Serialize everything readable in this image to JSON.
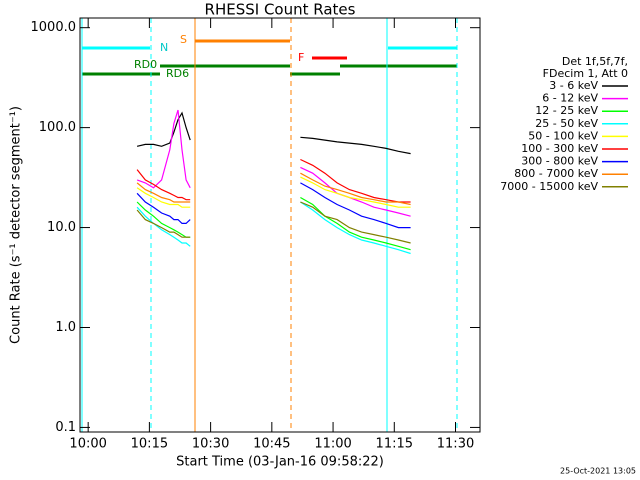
{
  "chart_data": {
    "type": "line",
    "title": "RHESSI Count Rates",
    "x_label": "Start Time (03-Jan-16 09:58:22)",
    "y_label": "Count Rate (s⁻¹ detector segment⁻¹)",
    "footer": "25-Oct-2021 13:05",
    "legend_header": [
      "Det 1f,5f,7f,",
      "FDecim 1, Att 0"
    ],
    "annotations": [
      "N",
      "S",
      "F",
      "RD0",
      "RD6"
    ],
    "log_y": true,
    "x": [
      "10:12",
      "10:14",
      "10:16",
      "10:18",
      "10:20",
      "10:21",
      "10:22",
      "10:23",
      "10:24",
      "10:25",
      "10:40",
      "10:52",
      "10:55",
      "10:58",
      "11:01",
      "11:04",
      "11:07",
      "11:10",
      "11:13",
      "11:16",
      "11:19"
    ],
    "xlim": [
      "09:58",
      "11:36"
    ],
    "xticks": [
      "10:00",
      "10:15",
      "10:30",
      "10:45",
      "11:00",
      "11:15",
      "11:30"
    ],
    "ylim": [
      0.09,
      1250
    ],
    "yticks": [
      {
        "value": 1000,
        "label": "1000.0"
      },
      {
        "value": 100,
        "label": "100.0"
      },
      {
        "value": 10,
        "label": "10.0"
      },
      {
        "value": 1,
        "label": "1.0"
      },
      0.1
    ],
    "series": [
      {
        "name": "3 - 6 keV",
        "color": "#000000",
        "values": [
          65,
          68,
          68,
          65,
          70,
          90,
          120,
          140,
          100,
          75,
          null,
          80,
          78,
          75,
          72,
          70,
          68,
          65,
          62,
          58,
          55
        ]
      },
      {
        "name": "6 - 12 keV",
        "color": "#ff00ff",
        "values": [
          30,
          28,
          25,
          30,
          60,
          110,
          150,
          60,
          30,
          25,
          null,
          40,
          35,
          28,
          22,
          20,
          18,
          16,
          15,
          14,
          13
        ]
      },
      {
        "name": "12 - 25 keV",
        "color": "#00ff00",
        "values": [
          18,
          15,
          13,
          11,
          10,
          9.5,
          9,
          8.5,
          8,
          8,
          null,
          20,
          17,
          13,
          11,
          9,
          8,
          7.5,
          7,
          6.5,
          6
        ]
      },
      {
        "name": "25 - 50 keV",
        "color": "#00ffff",
        "values": [
          16,
          13,
          11,
          9.5,
          8.5,
          8,
          7.5,
          7,
          7,
          6.5,
          null,
          18,
          15,
          12,
          10,
          8.5,
          7.5,
          7,
          6.5,
          6,
          5.5
        ]
      },
      {
        "name": "50 - 100 keV",
        "color": "#ffff00",
        "values": [
          25,
          22,
          20,
          18,
          17,
          17,
          17,
          16,
          16,
          16,
          null,
          32,
          28,
          24,
          22,
          20,
          19,
          18,
          17,
          16,
          16
        ]
      },
      {
        "name": "100 - 300 keV",
        "color": "#ff0000",
        "values": [
          38,
          30,
          27,
          24,
          22,
          21,
          20,
          20,
          19,
          19,
          null,
          48,
          42,
          35,
          28,
          24,
          22,
          20,
          19,
          18,
          18
        ]
      },
      {
        "name": "300 - 800 keV",
        "color": "#0000ff",
        "values": [
          22,
          18,
          16,
          14,
          13,
          12,
          12,
          11,
          11,
          12,
          null,
          28,
          24,
          20,
          17,
          15,
          13,
          12,
          11,
          10,
          10
        ]
      },
      {
        "name": "800 - 7000 keV",
        "color": "#ff8000",
        "values": [
          28,
          24,
          22,
          20,
          19,
          18,
          18,
          18,
          18,
          18,
          null,
          35,
          30,
          26,
          24,
          22,
          20,
          19,
          18,
          18,
          17
        ]
      },
      {
        "name": "7000 - 15000 keV",
        "color": "#808000",
        "values": [
          15,
          12,
          11,
          10,
          9,
          9,
          8.5,
          8,
          8,
          8,
          null,
          18,
          16,
          13,
          12,
          10,
          9,
          8.5,
          8,
          7.5,
          7
        ]
      }
    ]
  }
}
